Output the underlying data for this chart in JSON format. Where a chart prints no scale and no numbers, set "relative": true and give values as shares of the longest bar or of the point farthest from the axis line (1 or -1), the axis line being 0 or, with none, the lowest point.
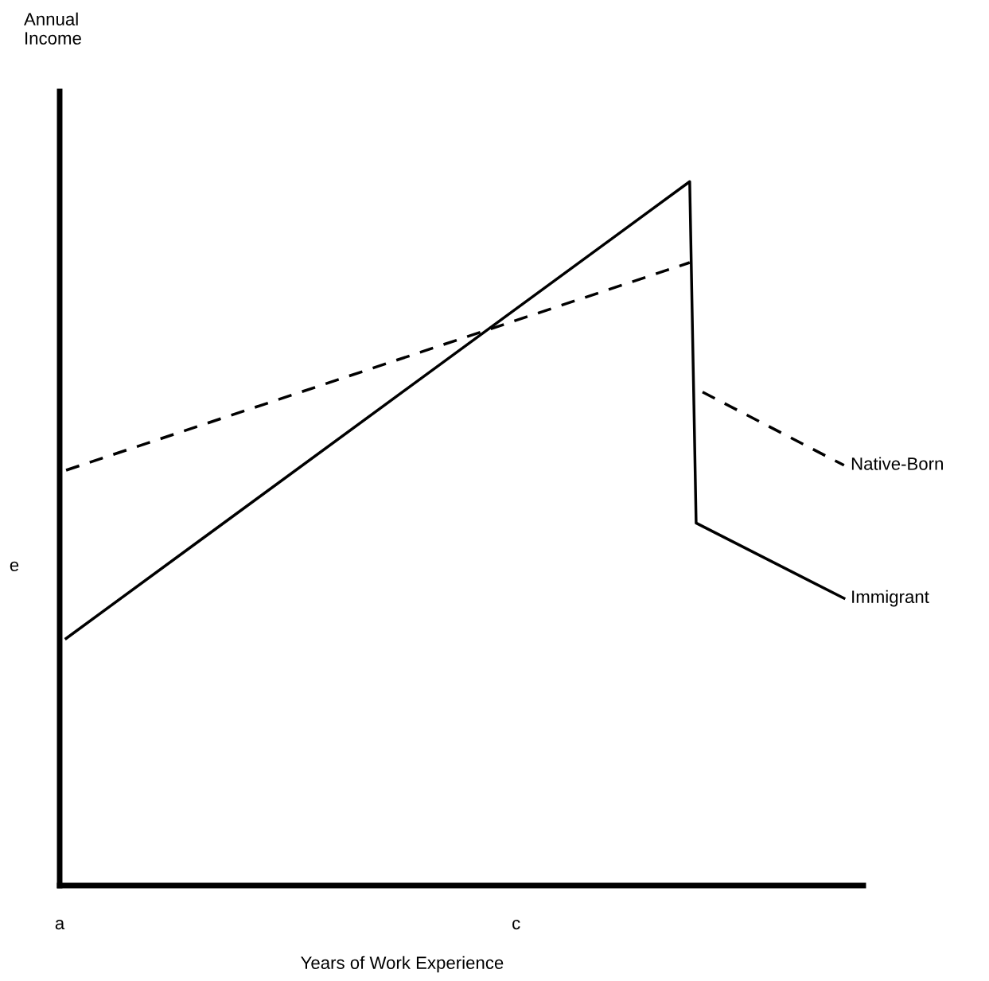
{
  "chart_data": {
    "type": "line",
    "relative": true,
    "xlabel": "Years of Work Experience",
    "categories": [
      "a",
      null,
      null,
      null,
      null,
      null,
      null,
      null,
      null,
      null,
      null,
      null,
      null,
      null,
      null,
      null,
      null,
      null,
      null,
      null,
      null,
      null,
      null,
      null,
      null,
      null,
      null,
      null,
      null,
      null,
      null,
      null,
      null,
      null,
      null,
      null,
      null,
      null,
      null,
      null,
      null,
      null,
      null,
      null,
      null,
      null,
      null,
      null,
      null,
      null,
      null,
      null,
      null,
      null,
      null,
      null,
      null,
      null,
      null,
      null,
      null,
      null,
      null,
      null,
      null,
      null,
      null,
      null,
      null,
      null,
      null,
      "c",
      null,
      null,
      null,
      null,
      null,
      null,
      null,
      null,
      null,
      null,
      null,
      null,
      null,
      null,
      null,
      null,
      null,
      null,
      null,
      null,
      null,
      null,
      null,
      null,
      null,
      null,
      null,
      null,
      null,
      null,
      null,
      null,
      null,
      null,
      null,
      null,
      null,
      null,
      null,
      null,
      null,
      null,
      null,
      null,
      null,
      null,
      null,
      null,
      null,
      null,
      null,
      null,
      null,
      null
    ],
    "series": [
      {
        "color": "#000000",
        "line_style": "dashed",
        "values": [
          null,
          0.59,
          null,
          null,
          null,
          null,
          null,
          null,
          null,
          null,
          null,
          null,
          null,
          null,
          null,
          null,
          null,
          null,
          null,
          null,
          null,
          null,
          null,
          null,
          null,
          null,
          null,
          null,
          null,
          null,
          null,
          null,
          null,
          null,
          null,
          null,
          null,
          null,
          null,
          null,
          null,
          null,
          null,
          null,
          null,
          null,
          null,
          null,
          null,
          null,
          null,
          null,
          null,
          null,
          null,
          null,
          null,
          null,
          null,
          null,
          null,
          null,
          null,
          null,
          null,
          null,
          null,
          null,
          null,
          null,
          null,
          null,
          null,
          null,
          null,
          null,
          null,
          null,
          null,
          null,
          null,
          null,
          null,
          null,
          null,
          null,
          null,
          null,
          null,
          null,
          null,
          null,
          null,
          null,
          null,
          null,
          null,
          null,
          0.885,
          null,
          null,
          null,
          null,
          null,
          null,
          null,
          null,
          null,
          null,
          null,
          null,
          null,
          null,
          null,
          null,
          null,
          null,
          null,
          null,
          null,
          null,
          null,
          null,
          null,
          null,
          null
        ]
      },
      {
        "name": "Native-Born",
        "color": "#000000",
        "line_style": "dashed",
        "values": [
          null,
          null,
          null,
          null,
          null,
          null,
          null,
          null,
          null,
          null,
          null,
          null,
          null,
          null,
          null,
          null,
          null,
          null,
          null,
          null,
          null,
          null,
          null,
          null,
          null,
          null,
          null,
          null,
          null,
          null,
          null,
          null,
          null,
          null,
          null,
          null,
          null,
          null,
          null,
          null,
          null,
          null,
          null,
          null,
          null,
          null,
          null,
          null,
          null,
          null,
          null,
          null,
          null,
          null,
          null,
          null,
          null,
          null,
          null,
          null,
          null,
          null,
          null,
          null,
          null,
          null,
          null,
          null,
          null,
          null,
          null,
          null,
          null,
          null,
          null,
          null,
          null,
          null,
          null,
          null,
          null,
          null,
          null,
          null,
          null,
          null,
          null,
          null,
          null,
          null,
          null,
          null,
          null,
          null,
          null,
          null,
          null,
          null,
          null,
          null,
          0.701,
          null,
          null,
          null,
          null,
          null,
          null,
          null,
          null,
          null,
          null,
          null,
          null,
          null,
          null,
          null,
          null,
          null,
          null,
          null,
          null,
          null,
          0.597,
          null,
          null,
          null
        ]
      },
      {
        "name": "Immigrant",
        "color": "#000000",
        "line_style": "solid",
        "values": [
          null,
          0.351,
          null,
          null,
          null,
          null,
          null,
          null,
          null,
          null,
          null,
          null,
          null,
          null,
          null,
          null,
          null,
          null,
          null,
          null,
          null,
          null,
          null,
          null,
          null,
          null,
          null,
          null,
          null,
          null,
          null,
          null,
          null,
          null,
          null,
          null,
          null,
          null,
          null,
          null,
          null,
          null,
          null,
          null,
          null,
          null,
          null,
          null,
          null,
          null,
          null,
          null,
          null,
          null,
          null,
          null,
          null,
          null,
          null,
          null,
          null,
          null,
          null,
          null,
          null,
          null,
          null,
          null,
          null,
          null,
          null,
          null,
          null,
          null,
          null,
          null,
          null,
          null,
          null,
          null,
          null,
          null,
          null,
          null,
          null,
          null,
          null,
          null,
          null,
          null,
          null,
          null,
          null,
          null,
          null,
          null,
          null,
          null,
          1.0,
          0.515,
          null,
          null,
          null,
          null,
          null,
          null,
          null,
          null,
          null,
          null,
          null,
          null,
          null,
          null,
          null,
          null,
          null,
          null,
          null,
          null,
          null,
          null,
          0.408,
          null,
          null,
          null
        ]
      }
    ],
    "annotations": [
      "Annual\nIncome",
      "e"
    ],
    "marker": "none"
  }
}
